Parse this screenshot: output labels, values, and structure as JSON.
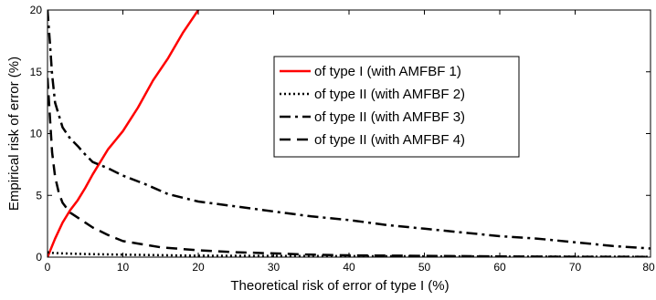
{
  "chart_data": {
    "type": "line",
    "title": "",
    "xlabel": "Theoretical risk of error of type I (%)",
    "ylabel": "Empirical risk of error (%)",
    "xlim": [
      0,
      80
    ],
    "ylim": [
      0,
      20
    ],
    "xticks": [
      "0",
      "10",
      "20",
      "30",
      "40",
      "50",
      "60",
      "70",
      "80"
    ],
    "yticks": [
      "0",
      "5",
      "10",
      "15",
      "20"
    ],
    "grid": false,
    "legend_position": "upper-center",
    "series": [
      {
        "name": "of type I (with AMFBF 1)",
        "style": "solid",
        "color": "#ff0000",
        "x": [
          0,
          1,
          2,
          3,
          4,
          5,
          6,
          8,
          10,
          12,
          14,
          16,
          18,
          20
        ],
        "y": [
          0,
          1.5,
          2.8,
          3.8,
          4.6,
          5.6,
          6.7,
          8.7,
          10.2,
          12.1,
          14.3,
          16.1,
          18.2,
          20
        ]
      },
      {
        "name": "of type II (with AMFBF 2)",
        "style": "dotted",
        "color": "#000000",
        "x": [
          0,
          0.5,
          2,
          5,
          10,
          20,
          40,
          60,
          80
        ],
        "y": [
          0.4,
          0.35,
          0.3,
          0.25,
          0.2,
          0.12,
          0.08,
          0.05,
          0.03
        ]
      },
      {
        "name": "of type II (with AMFBF 3)",
        "style": "dashdot",
        "color": "#000000",
        "x": [
          0,
          0.3,
          0.6,
          1,
          1.5,
          2,
          3,
          4,
          5,
          6,
          8,
          10,
          13,
          16,
          20,
          25,
          30,
          35,
          40,
          45,
          50,
          55,
          60,
          65,
          70,
          75,
          80
        ],
        "y": [
          20,
          17.5,
          14.8,
          12.5,
          11.5,
          10.5,
          9.6,
          9.0,
          8.3,
          7.7,
          7.2,
          6.6,
          5.9,
          5.1,
          4.5,
          4.1,
          3.7,
          3.3,
          3.0,
          2.6,
          2.3,
          2.0,
          1.7,
          1.5,
          1.2,
          0.9,
          0.7
        ]
      },
      {
        "name": "of type II (with AMFBF 4)",
        "style": "dashed",
        "color": "#000000",
        "x": [
          0,
          0.3,
          0.6,
          1,
          1.5,
          2,
          3,
          4,
          5,
          6,
          8,
          10,
          12,
          15,
          20,
          25,
          30,
          35,
          40,
          50,
          60,
          70,
          80
        ],
        "y": [
          14.5,
          11.5,
          8.5,
          6.5,
          5.2,
          4.4,
          3.6,
          3.2,
          2.8,
          2.4,
          1.8,
          1.3,
          1.1,
          0.8,
          0.55,
          0.4,
          0.3,
          0.2,
          0.15,
          0.1,
          0.06,
          0.03,
          0.02
        ]
      }
    ]
  }
}
